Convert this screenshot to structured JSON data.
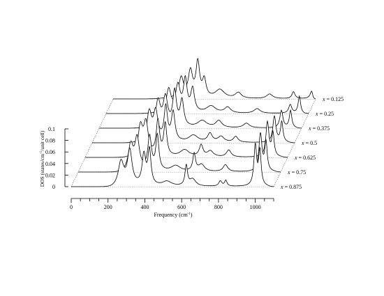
{
  "chart_data": {
    "type": "line",
    "style": "waterfall",
    "title": "",
    "xlabel": "Frequency (cm",
    "xlabel_sup": "-1",
    "xlabel_tail": ")",
    "ylabel": "DOS (states/cm",
    "ylabel_sup": "-1",
    "ylabel_tail": "/unit cell)",
    "xlim": [
      0,
      1100
    ],
    "ylim": [
      0,
      0.1
    ],
    "xticks": [
      "0",
      "200",
      "400",
      "600",
      "800",
      "1000"
    ],
    "xtick_values": [
      0,
      200,
      400,
      600,
      800,
      1000
    ],
    "yticks": [
      "0",
      "0.02",
      "0.04",
      "0.06",
      "0.08",
      "0.1"
    ],
    "ytick_values": [
      0,
      0.02,
      0.04,
      0.06,
      0.08,
      0.1
    ],
    "series": [
      {
        "name": "x = 0.875",
        "x_var": "x",
        "value": "= 0.875",
        "peaks": [
          [
            270,
            0.044,
            18
          ],
          [
            318,
            0.06,
            15
          ],
          [
            395,
            0.052,
            12
          ],
          [
            425,
            0.06,
            10
          ],
          [
            520,
            0.008,
            30
          ],
          [
            625,
            0.035,
            8
          ],
          [
            660,
            0.012,
            20
          ],
          [
            810,
            0.009,
            10
          ],
          [
            840,
            0.01,
            8
          ],
          [
            1000,
            0.07,
            9
          ],
          [
            1025,
            0.06,
            8
          ]
        ]
      },
      {
        "name": "x = 0.75",
        "x_var": "x",
        "value": "= 0.75",
        "peaks": [
          [
            285,
            0.045,
            16
          ],
          [
            320,
            0.055,
            15
          ],
          [
            388,
            0.058,
            12
          ],
          [
            430,
            0.06,
            10
          ],
          [
            530,
            0.01,
            30
          ],
          [
            630,
            0.03,
            9
          ],
          [
            670,
            0.012,
            20
          ],
          [
            800,
            0.012,
            15
          ],
          [
            990,
            0.065,
            10
          ],
          [
            1020,
            0.05,
            8
          ]
        ]
      },
      {
        "name": "x = 0.625",
        "x_var": "x",
        "value": "= 0.625",
        "peaks": [
          [
            300,
            0.05,
            15
          ],
          [
            330,
            0.055,
            15
          ],
          [
            395,
            0.06,
            11
          ],
          [
            435,
            0.055,
            10
          ],
          [
            540,
            0.012,
            30
          ],
          [
            630,
            0.02,
            12
          ],
          [
            680,
            0.01,
            20
          ],
          [
            780,
            0.012,
            15
          ],
          [
            990,
            0.06,
            10
          ],
          [
            1020,
            0.04,
            8
          ]
        ]
      },
      {
        "name": "x = 0.5",
        "x_var": "x",
        "value": "= 0.5",
        "peaks": [
          [
            310,
            0.05,
            15
          ],
          [
            345,
            0.05,
            15
          ],
          [
            400,
            0.058,
            11
          ],
          [
            440,
            0.05,
            12
          ],
          [
            550,
            0.012,
            30
          ],
          [
            640,
            0.015,
            15
          ],
          [
            700,
            0.01,
            20
          ],
          [
            780,
            0.01,
            15
          ],
          [
            990,
            0.045,
            10
          ],
          [
            1030,
            0.035,
            8
          ]
        ]
      },
      {
        "name": "x = 0.375",
        "x_var": "x",
        "value": "= 0.375",
        "peaks": [
          [
            320,
            0.045,
            15
          ],
          [
            360,
            0.05,
            15
          ],
          [
            410,
            0.06,
            12
          ],
          [
            450,
            0.045,
            12
          ],
          [
            560,
            0.012,
            30
          ],
          [
            650,
            0.012,
            20
          ],
          [
            800,
            0.008,
            20
          ],
          [
            990,
            0.03,
            10
          ],
          [
            1040,
            0.03,
            8
          ]
        ]
      },
      {
        "name": "x = 0.25",
        "x_var": "x",
        "value": "= 0.25",
        "peaks": [
          [
            340,
            0.04,
            15
          ],
          [
            390,
            0.045,
            15
          ],
          [
            430,
            0.055,
            12
          ],
          [
            470,
            0.04,
            12
          ],
          [
            570,
            0.012,
            30
          ],
          [
            660,
            0.01,
            20
          ],
          [
            820,
            0.008,
            20
          ],
          [
            1000,
            0.015,
            10
          ],
          [
            1050,
            0.03,
            8
          ]
        ]
      },
      {
        "name": "x = 0.125",
        "x_var": "x",
        "value": "= 0.125",
        "peaks": [
          [
            370,
            0.035,
            15
          ],
          [
            420,
            0.045,
            14
          ],
          [
            460,
            0.06,
            12
          ],
          [
            495,
            0.03,
            12
          ],
          [
            580,
            0.015,
            30
          ],
          [
            680,
            0.01,
            20
          ],
          [
            850,
            0.008,
            20
          ],
          [
            980,
            0.012,
            10
          ],
          [
            1080,
            0.025,
            8
          ]
        ]
      }
    ]
  }
}
